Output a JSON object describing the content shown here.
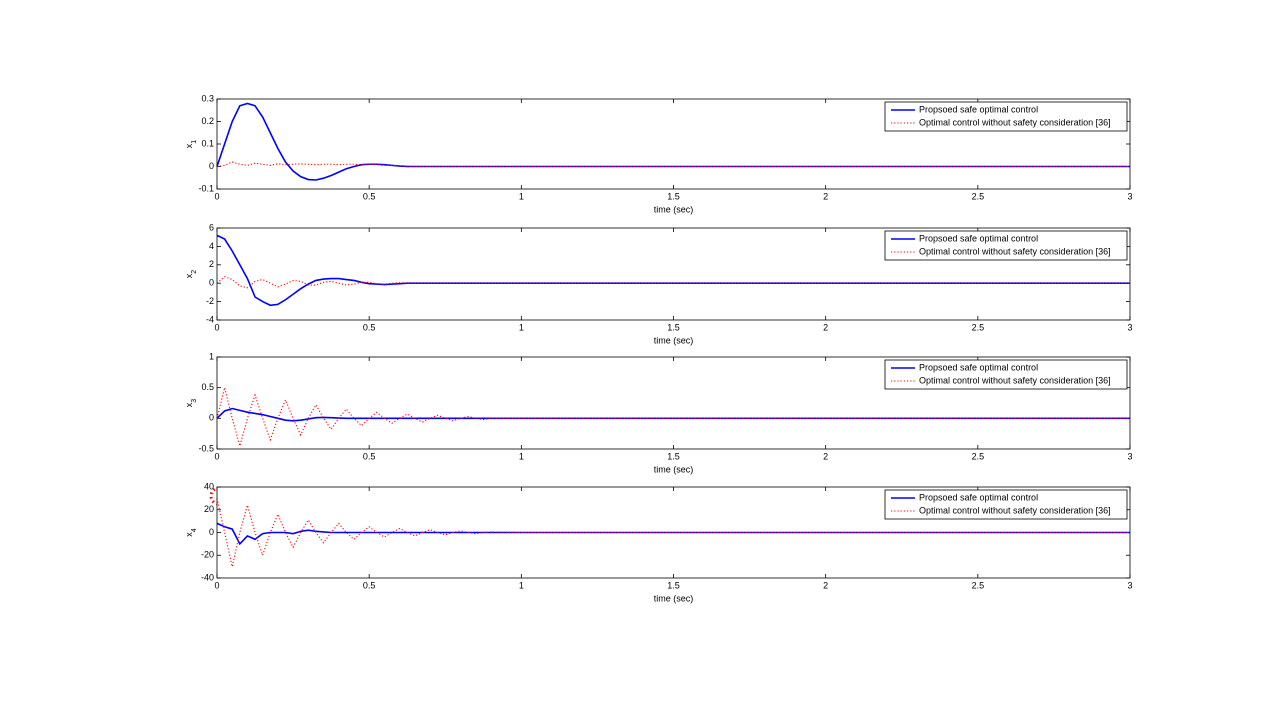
{
  "chart_data": [
    {
      "type": "line",
      "xlabel": "time (sec)",
      "ylabel": "x",
      "ylabel_sub": "1",
      "legend": "upper right",
      "xlim": [
        0,
        3
      ],
      "xticks": [
        0,
        0.5,
        1,
        1.5,
        2,
        2.5,
        3
      ],
      "ylim": [
        -0.1,
        0.3
      ],
      "yticks": [
        -0.1,
        0,
        0.1,
        0.2,
        0.3
      ],
      "x": [
        0,
        0.025,
        0.05,
        0.075,
        0.1,
        0.125,
        0.15,
        0.175,
        0.2,
        0.225,
        0.25,
        0.275,
        0.3,
        0.325,
        0.35,
        0.375,
        0.4,
        0.425,
        0.45,
        0.475,
        0.5,
        0.525,
        0.55,
        0.575,
        0.6,
        0.625,
        0.65,
        0.675,
        0.7,
        0.725,
        0.75,
        0.775,
        0.8,
        0.825,
        0.85,
        0.875,
        0.9,
        1,
        1.5,
        2,
        2.5,
        3
      ],
      "series": [
        {
          "name": "Propsoed safe optimal control",
          "color": "#0000ff",
          "dash": "solid",
          "values": [
            0,
            0.1,
            0.2,
            0.27,
            0.28,
            0.27,
            0.22,
            0.15,
            0.08,
            0.02,
            -0.02,
            -0.045,
            -0.058,
            -0.06,
            -0.052,
            -0.04,
            -0.025,
            -0.01,
            0,
            0.008,
            0.01,
            0.01,
            0.008,
            0.005,
            0.002,
            0,
            0,
            0,
            0,
            0,
            0,
            0,
            0,
            0,
            0,
            0,
            0,
            0,
            0,
            0,
            0,
            0
          ]
        },
        {
          "name": "Optimal control without safety consideration [36]",
          "color": "#ff0000",
          "dash": "dotted",
          "values": [
            0,
            0.005,
            0.02,
            0.01,
            0.005,
            0.015,
            0.01,
            0.005,
            0.012,
            0.008,
            0.01,
            0.012,
            0.01,
            0.008,
            0.01,
            0.01,
            0.008,
            0.01,
            0.01,
            0.008,
            0.01,
            0.008,
            0.005,
            0.005,
            0.003,
            0.002,
            0,
            0,
            0,
            0,
            0,
            0,
            0,
            0,
            0,
            0,
            0,
            0,
            0,
            0,
            0,
            0
          ]
        }
      ]
    },
    {
      "type": "line",
      "xlabel": "time (sec)",
      "ylabel": "x",
      "ylabel_sub": "2",
      "legend": "upper right",
      "xlim": [
        0,
        3
      ],
      "xticks": [
        0,
        0.5,
        1,
        1.5,
        2,
        2.5,
        3
      ],
      "ylim": [
        -4,
        6
      ],
      "yticks": [
        -4,
        -2,
        0,
        2,
        4,
        6
      ],
      "x": [
        0,
        0.025,
        0.05,
        0.075,
        0.1,
        0.125,
        0.15,
        0.175,
        0.2,
        0.225,
        0.25,
        0.275,
        0.3,
        0.325,
        0.35,
        0.375,
        0.4,
        0.425,
        0.45,
        0.475,
        0.5,
        0.525,
        0.55,
        0.575,
        0.6,
        0.625,
        0.65,
        0.675,
        0.7,
        0.725,
        0.75,
        0.775,
        0.8,
        0.825,
        0.85,
        0.875,
        0.9,
        1,
        1.5,
        2,
        2.5,
        3
      ],
      "series": [
        {
          "name": "Propsoed safe optimal control",
          "color": "#0000ff",
          "dash": "solid",
          "values": [
            5.2,
            4.8,
            3.5,
            2,
            0.5,
            -1.5,
            -2,
            -2.4,
            -2.3,
            -1.8,
            -1.2,
            -0.6,
            -0.1,
            0.3,
            0.45,
            0.5,
            0.5,
            0.4,
            0.3,
            0.1,
            -0.05,
            -0.1,
            -0.15,
            -0.1,
            -0.05,
            0,
            0,
            0,
            0,
            0,
            0,
            0,
            0,
            0,
            0,
            0,
            0,
            0,
            0,
            0,
            0,
            0
          ]
        },
        {
          "name": "Optimal control without safety consideration [36]",
          "color": "#ff0000",
          "dash": "dotted",
          "values": [
            0,
            0.7,
            0.4,
            -0.3,
            -0.5,
            0.2,
            0.4,
            0,
            -0.4,
            -0.1,
            0.3,
            0.2,
            -0.2,
            -0.2,
            0.1,
            0.2,
            0,
            -0.2,
            -0.1,
            0.1,
            0.1,
            -0.05,
            -0.1,
            0,
            0.05,
            0.02,
            0,
            0,
            0,
            0,
            0,
            0,
            0,
            0,
            0,
            0,
            0,
            0,
            0,
            0,
            0,
            0
          ]
        }
      ]
    },
    {
      "type": "line",
      "xlabel": "time (sec)",
      "ylabel": "x",
      "ylabel_sub": "3",
      "legend": "upper right",
      "xlim": [
        0,
        3
      ],
      "xticks": [
        0,
        0.5,
        1,
        1.5,
        2,
        2.5,
        3
      ],
      "ylim": [
        -0.5,
        1
      ],
      "yticks": [
        -0.5,
        0,
        0.5,
        1
      ],
      "x": [
        0,
        0.025,
        0.05,
        0.075,
        0.1,
        0.125,
        0.15,
        0.175,
        0.2,
        0.225,
        0.25,
        0.275,
        0.3,
        0.325,
        0.35,
        0.375,
        0.4,
        0.425,
        0.45,
        0.475,
        0.5,
        0.525,
        0.55,
        0.575,
        0.6,
        0.625,
        0.65,
        0.675,
        0.7,
        0.725,
        0.75,
        0.775,
        0.8,
        0.825,
        0.85,
        0.875,
        0.9,
        1,
        1.5,
        2,
        2.5,
        3
      ],
      "series": [
        {
          "name": "Propsoed safe optimal control",
          "color": "#0000ff",
          "dash": "solid",
          "values": [
            0,
            0.12,
            0.16,
            0.13,
            0.1,
            0.08,
            0.06,
            0.03,
            0,
            -0.03,
            -0.04,
            -0.03,
            -0.01,
            0.01,
            0.015,
            0.01,
            0.005,
            0,
            0,
            0,
            0,
            0,
            0,
            0,
            0,
            0,
            0,
            0,
            0,
            0,
            0,
            0,
            0,
            0,
            0,
            0,
            0,
            0,
            0,
            0,
            0,
            0
          ]
        },
        {
          "name": "Optimal control without safety consideration [36]",
          "color": "#ff0000",
          "dash": "dotted",
          "values": [
            0,
            0.5,
            0,
            -0.45,
            0,
            0.38,
            0,
            -0.35,
            0,
            0.3,
            0,
            -0.27,
            0,
            0.22,
            0,
            -0.18,
            0,
            0.15,
            0,
            -0.12,
            0,
            0.1,
            0,
            -0.08,
            0,
            0.07,
            0,
            -0.06,
            0,
            0.05,
            0,
            -0.04,
            0,
            0.03,
            0,
            -0.02,
            0,
            0,
            0,
            0,
            0,
            0
          ]
        }
      ]
    },
    {
      "type": "line",
      "xlabel": "time (sec)",
      "ylabel": "x",
      "ylabel_sub": "4",
      "legend": "upper right",
      "xlim": [
        0,
        3
      ],
      "xticks": [
        0,
        0.5,
        1,
        1.5,
        2,
        2.5,
        3
      ],
      "ylim": [
        -40,
        40
      ],
      "yticks": [
        -40,
        -20,
        0,
        20,
        40
      ],
      "x": [
        0,
        0.025,
        0.05,
        0.075,
        0.1,
        0.125,
        0.15,
        0.175,
        0.2,
        0.225,
        0.25,
        0.275,
        0.3,
        0.325,
        0.35,
        0.375,
        0.4,
        0.425,
        0.45,
        0.475,
        0.5,
        0.525,
        0.55,
        0.575,
        0.6,
        0.625,
        0.65,
        0.675,
        0.7,
        0.725,
        0.75,
        0.775,
        0.8,
        0.825,
        0.85,
        0.875,
        0.9,
        1,
        1.5,
        2,
        2.5,
        3
      ],
      "series": [
        {
          "name": "Propsoed safe optimal control",
          "color": "#0000ff",
          "dash": "solid",
          "values": [
            8,
            5,
            3,
            -10,
            -3,
            -6,
            -1,
            0,
            0,
            0,
            -1,
            1,
            2,
            1,
            0.5,
            0,
            0,
            0,
            0,
            0,
            0,
            0,
            0,
            0,
            0,
            0,
            0,
            0,
            0,
            0,
            0,
            0,
            0,
            0,
            0,
            0,
            0,
            0,
            0,
            0,
            0,
            0
          ]
        },
        {
          "name": "Optimal control without safety consideration [36]",
          "color": "#ff0000",
          "dash": "dotted",
          "values": [
            30,
            0,
            -30,
            0,
            24,
            0,
            -20,
            0,
            16,
            0,
            -13,
            0,
            11,
            0,
            -9,
            0,
            8,
            0,
            -6,
            0,
            5,
            0,
            -4,
            0,
            3.5,
            0,
            -3,
            0,
            2.5,
            0,
            -2,
            0,
            1.5,
            0,
            -1,
            0,
            0.5,
            0,
            0,
            0,
            0,
            0
          ]
        }
      ]
    }
  ]
}
